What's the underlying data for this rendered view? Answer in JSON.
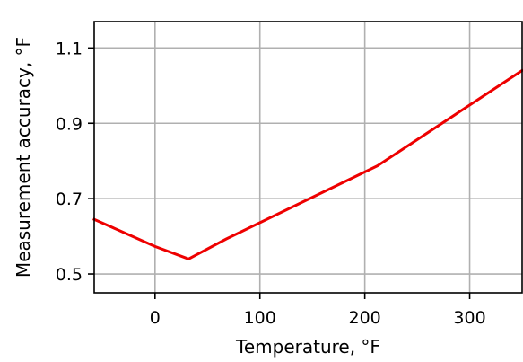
{
  "chart_data": {
    "type": "line",
    "title": "",
    "xlabel": "Temperature, °F",
    "ylabel": "Measurement accuracy, °F",
    "xlim": [
      -58,
      350
    ],
    "ylim": [
      0.45,
      1.17
    ],
    "xticks": [
      0,
      100,
      200,
      300
    ],
    "xtick_labels": [
      "0",
      "100",
      "200",
      "300"
    ],
    "yticks": [
      0.5,
      0.7,
      0.9,
      1.1
    ],
    "ytick_labels": [
      "0.5",
      "0.7",
      "0.9",
      "1.1"
    ],
    "grid": true,
    "series": [
      {
        "color": "#ee0000",
        "x": [
          -58,
          0,
          32,
          68,
          212,
          350
        ],
        "y": [
          0.645,
          0.573,
          0.54,
          0.593,
          0.787,
          1.04
        ]
      }
    ]
  }
}
